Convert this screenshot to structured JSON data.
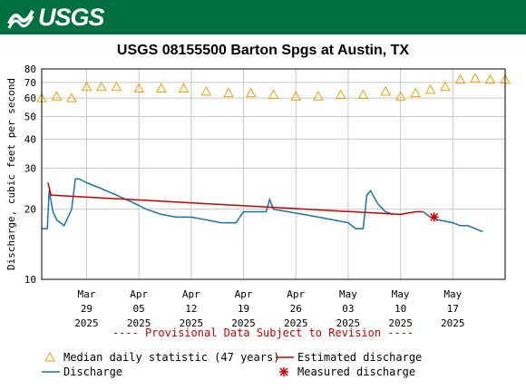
{
  "brand": {
    "logo_text": "USGS"
  },
  "chart_data": {
    "type": "line",
    "title": "USGS 08155500 Barton Spgs at Austin, TX",
    "ylabel": "Discharge, cubic feet per second",
    "y_scale": "log",
    "ylim": [
      10,
      80
    ],
    "y_ticks": [
      10,
      20,
      30,
      40,
      50,
      60,
      70,
      80
    ],
    "y_tick_labels": [
      "10",
      "20",
      "30",
      "40",
      "50",
      "60",
      "70",
      "80"
    ],
    "xlim": [
      "2025-03-23",
      "2025-05-24"
    ],
    "x_ticks": [
      {
        "date": "2025-03-29",
        "label": [
          "Mar",
          "29",
          "2025"
        ]
      },
      {
        "date": "2025-04-05",
        "label": [
          "Apr",
          "05",
          "2025"
        ]
      },
      {
        "date": "2025-04-12",
        "label": [
          "Apr",
          "12",
          "2025"
        ]
      },
      {
        "date": "2025-04-19",
        "label": [
          "Apr",
          "19",
          "2025"
        ]
      },
      {
        "date": "2025-04-26",
        "label": [
          "Apr",
          "26",
          "2025"
        ]
      },
      {
        "date": "2025-05-03",
        "label": [
          "May",
          "03",
          "2025"
        ]
      },
      {
        "date": "2025-05-10",
        "label": [
          "May",
          "10",
          "2025"
        ]
      },
      {
        "date": "2025-05-17",
        "label": [
          "May",
          "17",
          "2025"
        ]
      }
    ],
    "grid": true,
    "provisional_note": "---- Provisional Data Subject to Revision ----",
    "series": [
      {
        "name": "Median daily statistic (47 years)",
        "style": "triangle-markers",
        "color": "#f0a000",
        "x": [
          "2025-03-23",
          "2025-03-25",
          "2025-03-27",
          "2025-03-29",
          "2025-03-31",
          "2025-04-02",
          "2025-04-05",
          "2025-04-08",
          "2025-04-11",
          "2025-04-14",
          "2025-04-17",
          "2025-04-20",
          "2025-04-23",
          "2025-04-26",
          "2025-04-29",
          "2025-05-02",
          "2025-05-05",
          "2025-05-08",
          "2025-05-10",
          "2025-05-12",
          "2025-05-14",
          "2025-05-16",
          "2025-05-18",
          "2025-05-20",
          "2025-05-22",
          "2025-05-24"
        ],
        "y": [
          60,
          61,
          60,
          67,
          67,
          67,
          66,
          66,
          66,
          64,
          63,
          63,
          62,
          61,
          61,
          62,
          62,
          64,
          61,
          63,
          65,
          67,
          72,
          73,
          72,
          72
        ]
      },
      {
        "name": "Discharge",
        "style": "line",
        "color": "#1a73a8",
        "x": [
          "2025-03-23",
          "2025-03-23T18",
          "2025-03-24",
          "2025-03-24T12",
          "2025-03-25",
          "2025-03-26",
          "2025-03-27",
          "2025-03-27T12",
          "2025-03-28",
          "2025-03-29",
          "2025-03-31",
          "2025-04-02",
          "2025-04-04",
          "2025-04-06",
          "2025-04-08",
          "2025-04-10",
          "2025-04-12",
          "2025-04-14",
          "2025-04-16",
          "2025-04-18",
          "2025-04-19",
          "2025-04-21",
          "2025-04-22",
          "2025-04-22T12",
          "2025-04-23",
          "2025-04-25",
          "2025-04-27",
          "2025-04-29",
          "2025-05-01",
          "2025-05-03",
          "2025-05-04",
          "2025-05-05",
          "2025-05-05T12",
          "2025-05-06",
          "2025-05-07",
          "2025-05-08",
          "2025-05-09"
        ],
        "y": [
          16.5,
          16.5,
          24,
          19.5,
          18,
          17,
          20,
          27,
          27,
          26,
          24.5,
          23,
          21.5,
          20,
          19,
          18.5,
          18.5,
          18,
          17.5,
          17.5,
          19.5,
          19.5,
          19.5,
          22,
          20,
          19.5,
          19,
          18.5,
          18,
          17.5,
          16.5,
          16.5,
          23,
          24,
          21,
          19.5,
          19
        ]
      },
      {
        "name": "Estimated discharge",
        "style": "line",
        "color": "#cc0000",
        "x": [
          "2025-03-23T20",
          "2025-03-24T06",
          "2025-05-10",
          "2025-05-12",
          "2025-05-13"
        ],
        "y": [
          26,
          23,
          19,
          19.5,
          19.5
        ]
      },
      {
        "name": "Discharge (after estimate)",
        "style": "line",
        "color": "#1a73a8",
        "x": [
          "2025-05-13",
          "2025-05-14",
          "2025-05-15",
          "2025-05-17",
          "2025-05-18",
          "2025-05-19",
          "2025-05-20",
          "2025-05-21"
        ],
        "y": [
          19.5,
          18.5,
          18,
          17.5,
          17,
          17,
          16.5,
          16
        ]
      },
      {
        "name": "Measured discharge",
        "style": "asterisk-marker",
        "color": "#cc0000",
        "x": [
          "2025-05-14T12"
        ],
        "y": [
          18.5
        ]
      }
    ],
    "legend": {
      "placement": "bottom",
      "entries": [
        {
          "label": "Median daily statistic (47 years)",
          "symbol": "triangle",
          "color": "#f0a000"
        },
        {
          "label": "Estimated discharge",
          "symbol": "line",
          "color": "#cc0000"
        },
        {
          "label": "Discharge",
          "symbol": "line",
          "color": "#1a73a8"
        },
        {
          "label": "Measured discharge",
          "symbol": "asterisk",
          "color": "#cc0000"
        }
      ]
    }
  }
}
